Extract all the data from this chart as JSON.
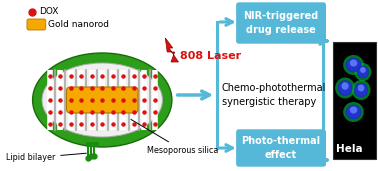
{
  "bg_color": "#ffffff",
  "legend_dot_color": "#dd1111",
  "legend_rod_color": "#f5a800",
  "green_ellipse_color": "#2d9e1a",
  "silica_body_color": "#e0e0e0",
  "rod_color": "#f5a800",
  "rod_edge_color": "#b07800",
  "red_dot_color": "#dd1111",
  "laser_color": "#dd1111",
  "arrow_color": "#55b8d8",
  "box_color": "#55b8d8",
  "box_text_color": "#ffffff",
  "center_text": "Chemo-photothermal\nsynergistic therapy",
  "box1_text": "NIR-triggered\ndrug release",
  "box2_text": "Photo-thermal\neffect",
  "laser_text": "808 Laser",
  "legend1": "DOX",
  "legend2": "Gold nanorod",
  "label1": "Mesoporous silica",
  "label2": "Lipid bilayer",
  "hela_text": "Hela",
  "lip_color": "#1a8a10",
  "lip_head_color": "#1a8a10",
  "label_color": "#000000",
  "center_text_color": "#000000"
}
